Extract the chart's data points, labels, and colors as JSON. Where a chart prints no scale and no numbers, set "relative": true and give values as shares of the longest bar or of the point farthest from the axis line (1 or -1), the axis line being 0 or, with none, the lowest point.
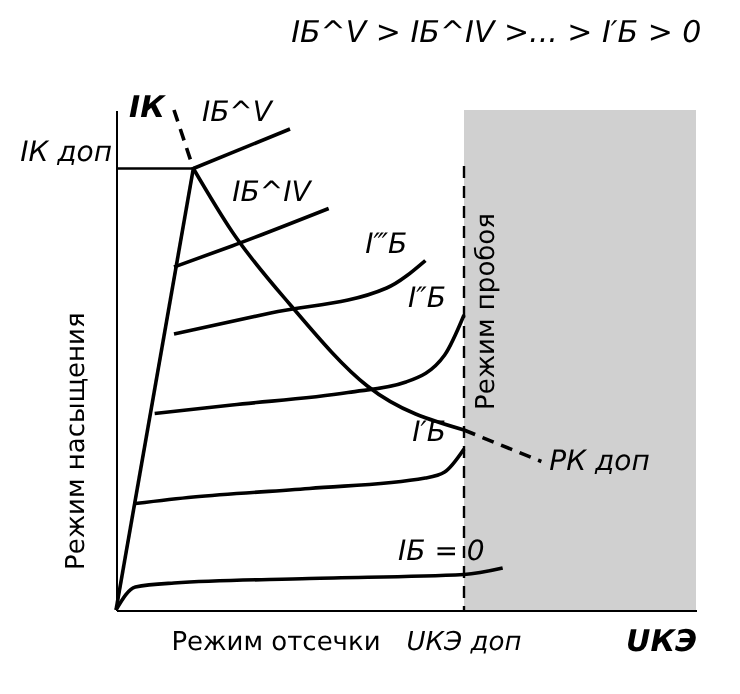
{
  "chart_data": {
    "type": "line",
    "relative": true,
    "title": "IБ^V > IБ^IV >... > I′Б > 0",
    "xlabel": "UКЭ",
    "ylabel": "IК",
    "categories": [
      null,
      null,
      null,
      null,
      null,
      null,
      null,
      null,
      null,
      null,
      null,
      null,
      null,
      null,
      null,
      null,
      null,
      null,
      null,
      null,
      null,
      null,
      null,
      null,
      null,
      null,
      null,
      null,
      null,
      null,
      null
    ],
    "series": [
      {
        "name": "IБ = 0",
        "color": "#000000",
        "values": [
          0,
          0.046,
          null,
          0.054,
          null,
          null,
          null,
          null,
          null,
          null,
          0.063,
          null,
          null,
          null,
          null,
          null,
          null,
          null,
          0.071,
          null,
          0.084,
          null,
          null,
          null,
          null,
          null,
          null,
          null,
          null,
          null,
          null
        ]
      },
      {
        "name": "I′Б",
        "color": "#000000",
        "values": [
          null,
          0.213,
          null,
          null,
          0.226,
          null,
          null,
          null,
          null,
          null,
          0.243,
          null,
          null,
          null,
          null,
          null,
          0.264,
          0.276,
          0.322,
          null,
          null,
          null,
          null,
          null,
          null,
          null,
          null,
          null,
          null,
          null,
          null
        ]
      },
      {
        "name": "I″Б",
        "color": "#000000",
        "values": [
          null,
          null,
          0.393,
          null,
          null,
          null,
          0.41,
          null,
          null,
          null,
          null,
          null,
          0.435,
          null,
          null,
          0.456,
          null,
          0.51,
          0.59,
          null,
          null,
          null,
          null,
          null,
          null,
          null,
          null,
          null,
          null,
          null,
          null
        ]
      },
      {
        "name": "I‴Б",
        "color": "#000000",
        "values": [
          null,
          null,
          null,
          0.552,
          null,
          null,
          null,
          null,
          0.594,
          null,
          null,
          null,
          null,
          null,
          0.644,
          null,
          0.699,
          null,
          null,
          null,
          null,
          null,
          null,
          null,
          null,
          null,
          null,
          null,
          null,
          null,
          null
        ]
      },
      {
        "name": "IБ^IV",
        "color": "#000000",
        "values": [
          null,
          null,
          null,
          0.686,
          null,
          null,
          0.728,
          null,
          null,
          null,
          null,
          0.803,
          null,
          null,
          null,
          null,
          null,
          null,
          null,
          null,
          null,
          null,
          null,
          null,
          null,
          null,
          null,
          null,
          null,
          null,
          null
        ]
      },
      {
        "name": "IБ^V",
        "color": "#000000",
        "values": [
          null,
          null,
          null,
          null,
          0.883,
          null,
          null,
          null,
          null,
          0.962,
          null,
          null,
          null,
          null,
          null,
          null,
          null,
          null,
          null,
          null,
          null,
          null,
          null,
          null,
          null,
          null,
          null,
          null,
          null,
          null,
          null
        ]
      },
      {
        "color": "#000000",
        "values": [
          0,
          null,
          null,
          null,
          0.883,
          null,
          null,
          null,
          null,
          null,
          null,
          null,
          null,
          null,
          null,
          null,
          null,
          null,
          null,
          null,
          null,
          null,
          null,
          null,
          null,
          null,
          null,
          null,
          null,
          null,
          null
        ]
      },
      {
        "color": "#000000",
        "values": [
          null,
          null,
          null,
          null,
          0.883,
          null,
          0.757,
          null,
          null,
          0.611,
          null,
          null,
          null,
          0.448,
          null,
          null,
          null,
          null,
          0.36,
          null,
          null,
          null,
          null,
          null,
          null,
          null,
          null,
          null,
          null,
          null,
          null
        ]
      },
      {
        "color": "#000000",
        "line_style": "dashed",
        "values": [
          null,
          null,
          null,
          1.0,
          0.883,
          null,
          null,
          null,
          null,
          null,
          null,
          null,
          null,
          null,
          null,
          null,
          null,
          null,
          null,
          null,
          null,
          null,
          null,
          null,
          null,
          null,
          null,
          null,
          null,
          null,
          null
        ]
      },
      {
        "name": "PК доп",
        "color": "#000000",
        "line_style": "dashed",
        "values": [
          null,
          null,
          null,
          null,
          null,
          null,
          null,
          null,
          null,
          null,
          null,
          null,
          null,
          null,
          null,
          null,
          null,
          null,
          0.36,
          null,
          null,
          null,
          0.297,
          null,
          null,
          null,
          null,
          null,
          null,
          null,
          null
        ]
      }
    ],
    "ref_lines": [
      {
        "axis": "y",
        "value": 0.883,
        "label": "IК доп",
        "color": "#000000"
      }
    ],
    "annotations": [
      "Режим насыщения",
      "Режим отсечки",
      "UКЭ доп",
      "Режим пробоя"
    ],
    "grid": false
  }
}
